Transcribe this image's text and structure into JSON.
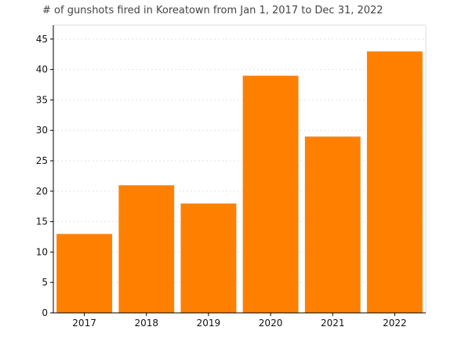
{
  "chart_data": {
    "type": "bar",
    "title": "# of gunshots fired in Koreatown from Jan 1, 2017 to Dec 31, 2022",
    "xlabel": "",
    "ylabel": "",
    "categories": [
      "2017",
      "2018",
      "2019",
      "2020",
      "2021",
      "2022"
    ],
    "values": [
      13,
      21,
      18,
      39,
      29,
      43
    ],
    "ylim": [
      0,
      47.3
    ],
    "yticks": [
      0,
      5,
      10,
      15,
      20,
      25,
      30,
      35,
      40,
      45
    ],
    "grid": "horizontal dotted",
    "bar_color": "#ff8000",
    "legend": "none"
  }
}
